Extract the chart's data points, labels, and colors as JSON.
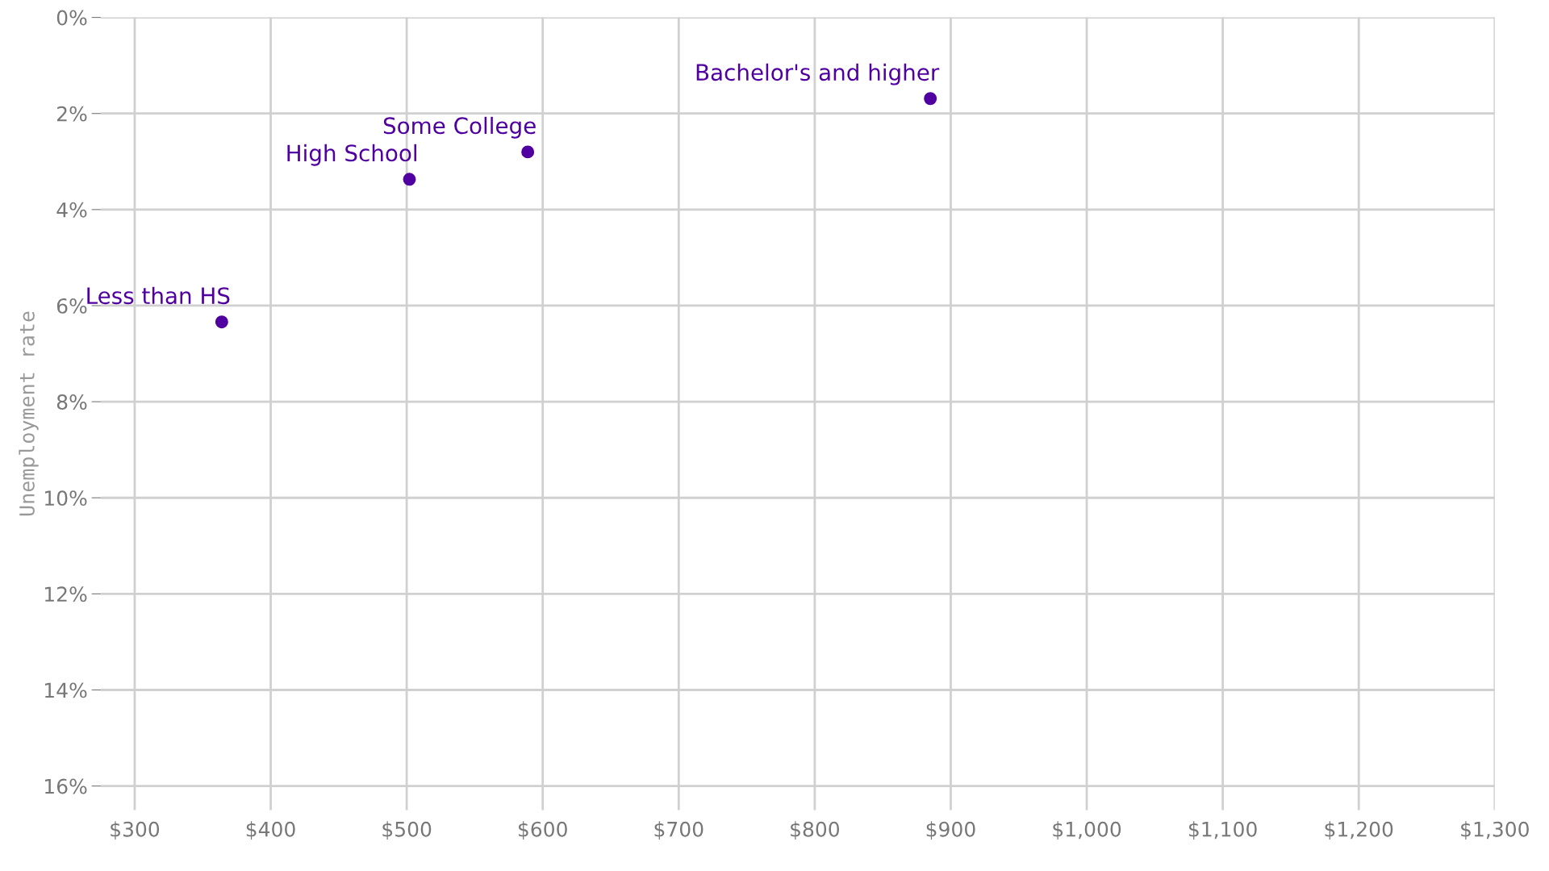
{
  "chart_data": {
    "type": "scatter",
    "ylabel": "Unemployment rate",
    "x": [
      364,
      502,
      589,
      885
    ],
    "series": [
      {
        "color": "#5000a0",
        "values": [
          6.34,
          3.37,
          2.8,
          1.69
        ]
      }
    ],
    "annotations": [
      {
        "text": "Less than HS",
        "x": 364,
        "y": 6.34
      },
      {
        "text": "High School",
        "x": 502,
        "y": 3.37
      },
      {
        "text": "Some College",
        "x": 589,
        "y": 2.8
      },
      {
        "text": "Bachelor's and higher",
        "x": 885,
        "y": 1.69
      }
    ],
    "xlim": [
      275,
      1300
    ],
    "ylim": [
      16.5,
      0
    ],
    "xticks": [
      {
        "value": 300,
        "label": "$300"
      },
      {
        "value": 400,
        "label": "$400"
      },
      {
        "value": 500,
        "label": "$500"
      },
      {
        "value": 600,
        "label": "$600"
      },
      {
        "value": 700,
        "label": "$700"
      },
      {
        "value": 800,
        "label": "$800"
      },
      {
        "value": 900,
        "label": "$900"
      },
      {
        "value": 1000,
        "label": "$1,000"
      },
      {
        "value": 1100,
        "label": "$1,100"
      },
      {
        "value": 1200,
        "label": "$1,200"
      },
      {
        "value": 1300,
        "label": "$1,300"
      }
    ],
    "yticks": [
      {
        "value": 0,
        "label": "0%"
      },
      {
        "value": 2,
        "label": "2%"
      },
      {
        "value": 4,
        "label": "4%"
      },
      {
        "value": 6,
        "label": "6%"
      },
      {
        "value": 8,
        "label": "8%"
      },
      {
        "value": 10,
        "label": "10%"
      },
      {
        "value": 12,
        "label": "12%"
      },
      {
        "value": 14,
        "label": "14%"
      },
      {
        "value": 16,
        "label": "16%"
      }
    ],
    "grid": true,
    "marker": "circle"
  }
}
